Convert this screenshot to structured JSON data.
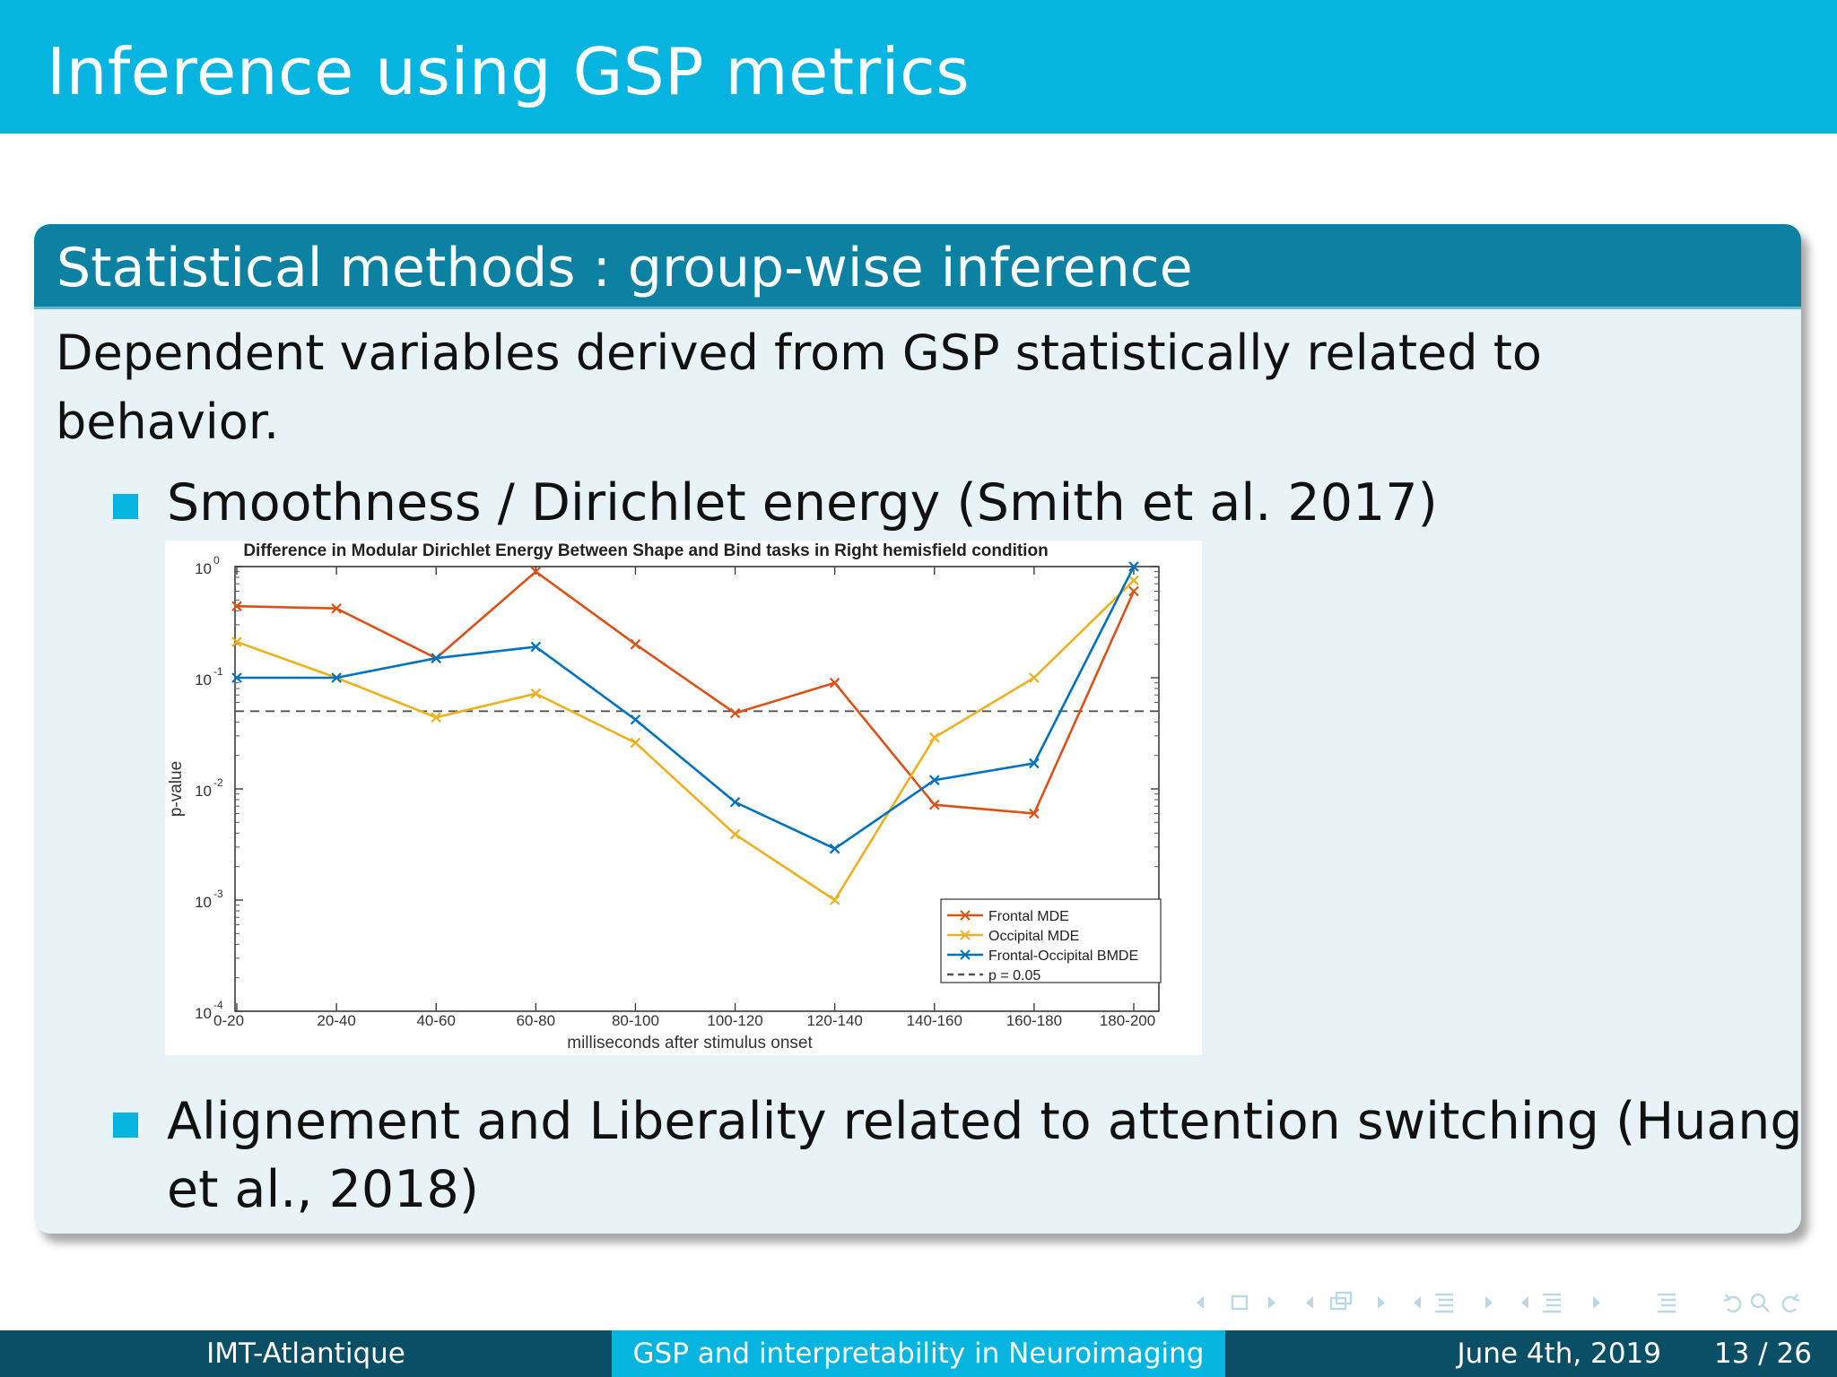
{
  "slide": {
    "title": "Inference using GSP metrics",
    "block_title": "Statistical methods : group-wise inference",
    "intro_text": "Dependent variables derived from GSP statistically related to behavior.",
    "bullets": [
      {
        "text": "Smoothness / Dirichlet energy (Smith et al. 2017)"
      },
      {
        "text": "Alignement and Liberality related to attention switching (Huang et al., 2018)"
      }
    ]
  },
  "footer": {
    "institution": "IMT-Atlantique",
    "talk_title": "GSP and interpretability in Neuroimaging",
    "date": "June 4th, 2019",
    "page": "13 / 26"
  },
  "colors": {
    "header": "#06b4e0",
    "block_header": "#0c81a1",
    "block_body": "#e8f3f7",
    "footer_dark": "#0b4f66",
    "frontal": "#d95319",
    "occipital": "#edb120",
    "bmde": "#0072bd"
  },
  "chart_data": {
    "type": "line",
    "title": "Difference in Modular Dirichlet Energy Between Shape and Bind tasks in Right hemisfield condition",
    "xlabel": "milliseconds after stimulus onset",
    "ylabel": "p-value",
    "yscale": "log",
    "ylim": [
      0.0001,
      1
    ],
    "yticks": [
      {
        "base": "10",
        "exp": "-4",
        "value": 0.0001
      },
      {
        "base": "10",
        "exp": "-3",
        "value": 0.001
      },
      {
        "base": "10",
        "exp": "-2",
        "value": 0.01
      },
      {
        "base": "10",
        "exp": "-1",
        "value": 0.1
      },
      {
        "base": "10",
        "exp": "0",
        "value": 1
      }
    ],
    "categories": [
      "0-20",
      "20-40",
      "40-60",
      "60-80",
      "80-100",
      "100-120",
      "120-140",
      "140-160",
      "160-180",
      "180-200"
    ],
    "series": [
      {
        "name": "Frontal MDE",
        "color": "#d95319",
        "values": [
          0.44,
          0.42,
          0.15,
          0.9,
          0.2,
          0.048,
          0.09,
          0.0072,
          0.006,
          0.6
        ]
      },
      {
        "name": "Occipital MDE",
        "color": "#edb120",
        "values": [
          0.21,
          0.1,
          0.044,
          0.072,
          0.026,
          0.0039,
          0.001,
          0.029,
          0.1,
          0.75
        ]
      },
      {
        "name": "Frontal-Occipital BMDE",
        "color": "#0072bd",
        "values": [
          0.1,
          0.1,
          0.15,
          0.19,
          0.042,
          0.0076,
          0.0029,
          0.012,
          0.017,
          1.0
        ]
      }
    ],
    "threshold": {
      "name": "p = 0.05",
      "value": 0.05
    },
    "legend_position": "bottom-right"
  }
}
